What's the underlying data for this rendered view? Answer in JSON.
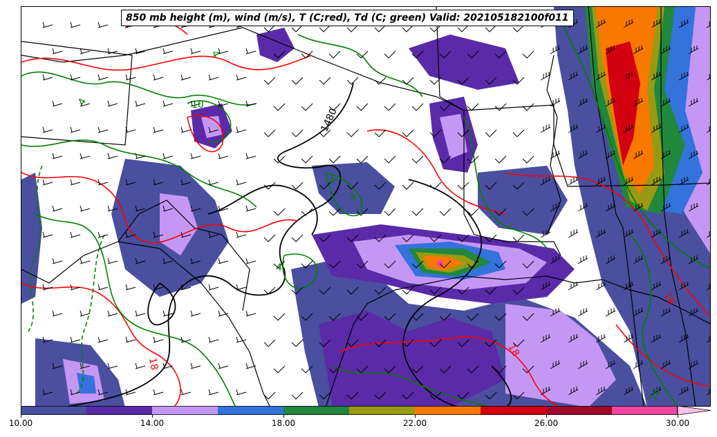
{
  "title": "850 mb height (m), wind (m/s), T (C;red), Td (C; green) Valid: 202105182100f011",
  "colorbar": {
    "min": 10,
    "max": 30,
    "ticks": [
      "10.00",
      "14.00",
      "18.00",
      "22.00",
      "26.00",
      "30.00"
    ],
    "bins": [
      {
        "from": 10,
        "to": 12,
        "color": "#4a4f9f"
      },
      {
        "from": 12,
        "to": 14,
        "color": "#5a2aa8"
      },
      {
        "from": 14,
        "to": 16,
        "color": "#c597f5"
      },
      {
        "from": 16,
        "to": 18,
        "color": "#3472dc"
      },
      {
        "from": 18,
        "to": 20,
        "color": "#21873c"
      },
      {
        "from": 20,
        "to": 22,
        "color": "#999a13"
      },
      {
        "from": 22,
        "to": 24,
        "color": "#f97800"
      },
      {
        "from": 24,
        "to": 26,
        "color": "#d30010"
      },
      {
        "from": 26,
        "to": 28,
        "color": "#a00a2a"
      },
      {
        "from": 28,
        "to": 30,
        "color": "#f046a0"
      }
    ],
    "extend_color": "#ffc0e6"
  },
  "contour_labels": {
    "height": [
      "1480"
    ],
    "temperature": [
      "18",
      "18",
      "18",
      "10"
    ],
    "dewpoint": [
      "4",
      "4",
      "4",
      "4",
      "4",
      "10",
      "10"
    ]
  },
  "colors": {
    "temperature_contour": "#ff0000",
    "dewpoint_contour": "#008000",
    "height_contour": "#000000",
    "borders": "#000000"
  }
}
